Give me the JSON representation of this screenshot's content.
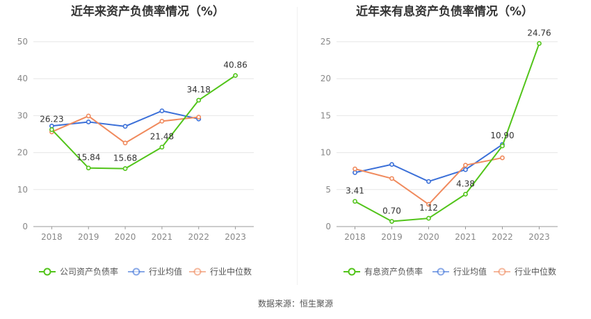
{
  "colors": {
    "company": "#52c41a",
    "industry_avg": "#3a6fd8",
    "industry_median": "#f08a5d",
    "grid": "#e6e6e6",
    "axis": "#999999",
    "tick_text": "#888888",
    "label_text": "#333333"
  },
  "source": {
    "label": "数据来源：",
    "name": "恒生聚源"
  },
  "chart_data": [
    {
      "type": "line",
      "title": "近年来资产负债率情况（%）",
      "categories": [
        "2018",
        "2019",
        "2020",
        "2021",
        "2022",
        "2023"
      ],
      "ylim": [
        0,
        50
      ],
      "yticks": [
        "0",
        "10",
        "20",
        "30",
        "40",
        "50"
      ],
      "series": [
        {
          "name": "公司资产负债率",
          "values": [
            26.23,
            15.84,
            15.68,
            21.48,
            34.18,
            40.86
          ],
          "labels": [
            "26.23",
            "15.84",
            "15.68",
            "21.48",
            "34.18",
            "40.86"
          ]
        },
        {
          "name": "行业均值",
          "values": [
            27.2,
            28.3,
            27.1,
            31.3,
            29.1,
            null
          ]
        },
        {
          "name": "行业中位数",
          "values": [
            25.6,
            29.9,
            22.6,
            28.5,
            29.6,
            null
          ]
        }
      ]
    },
    {
      "type": "line",
      "title": "近年来有息资产负债率情况（%）",
      "categories": [
        "2018",
        "2019",
        "2020",
        "2021",
        "2022",
        "2023"
      ],
      "ylim": [
        0,
        25
      ],
      "yticks": [
        "0",
        "5",
        "10",
        "15",
        "20",
        "25"
      ],
      "series": [
        {
          "name": "有息资产负债率",
          "values": [
            3.41,
            0.7,
            1.12,
            4.38,
            10.9,
            24.76
          ],
          "labels": [
            "3.41",
            "0.70",
            "1.12",
            "4.38",
            "10.90",
            "24.76"
          ]
        },
        {
          "name": "行业均值",
          "values": [
            7.3,
            8.4,
            6.1,
            7.7,
            11.1,
            null
          ]
        },
        {
          "name": "行业中位数",
          "values": [
            7.8,
            6.5,
            3.0,
            8.3,
            9.3,
            null
          ]
        }
      ]
    }
  ]
}
